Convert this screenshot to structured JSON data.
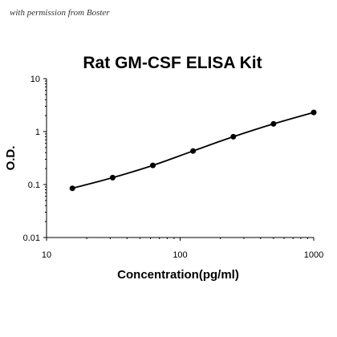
{
  "watermark": "with permission from Boster",
  "chart_data": {
    "type": "scatter",
    "title": "Rat GM-CSF ELISA Kit",
    "xlabel": "Concentration(pg/ml)",
    "ylabel": "O.D.",
    "x_scale": "log",
    "y_scale": "log",
    "xlim": [
      10,
      1000
    ],
    "ylim": [
      0.01,
      10
    ],
    "x_ticks": [
      "10",
      "100",
      "1000"
    ],
    "y_ticks": [
      "0.01",
      "0.1",
      "1",
      "10"
    ],
    "grid": false,
    "legend": "none",
    "series": [
      {
        "x": [
          15.6,
          31.25,
          62.5,
          125,
          250,
          500,
          1000
        ],
        "y": [
          0.085,
          0.135,
          0.23,
          0.43,
          0.8,
          1.4,
          2.3
        ],
        "fit_line": true,
        "color": "#000000"
      }
    ]
  }
}
